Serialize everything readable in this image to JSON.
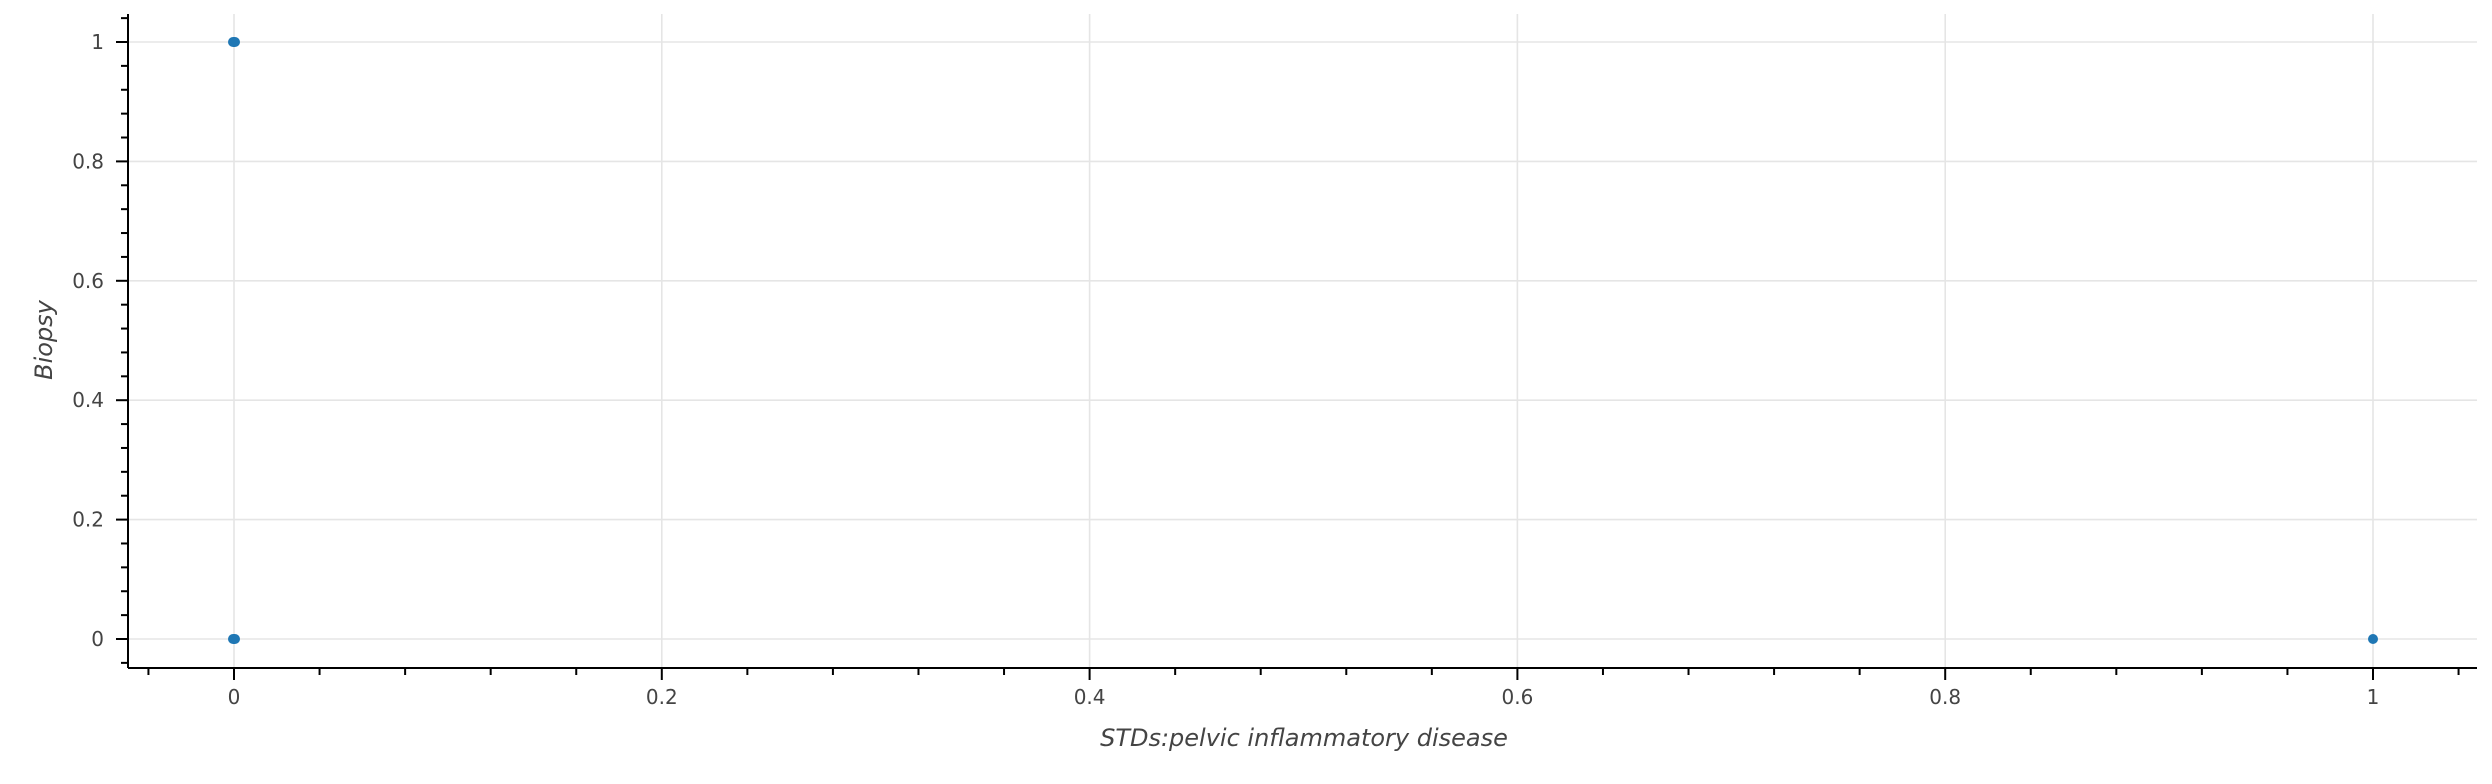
{
  "chart_data": {
    "type": "scatter",
    "xlabel": "STDs:pelvic inflammatory disease",
    "ylabel": "Biopsy",
    "xlim": [
      -0.05,
      1.05
    ],
    "ylim": [
      -0.05,
      1.05
    ],
    "x_ticks": [
      0,
      0.2,
      0.4,
      0.6,
      0.8,
      1
    ],
    "x_tick_labels": [
      "0",
      "0.2",
      "0.4",
      "0.6",
      "0.8",
      "1"
    ],
    "y_ticks": [
      0,
      0.2,
      0.4,
      0.6,
      0.8,
      1
    ],
    "y_tick_labels": [
      "0",
      "0.2",
      "0.4",
      "0.6",
      "0.8",
      "1"
    ],
    "grid": true,
    "marker_color": "#1f77b4",
    "series": [
      {
        "points": [
          {
            "x": 0,
            "y": 1
          },
          {
            "x": 0,
            "y": 0
          },
          {
            "x": 1,
            "y": 0
          }
        ]
      }
    ]
  }
}
